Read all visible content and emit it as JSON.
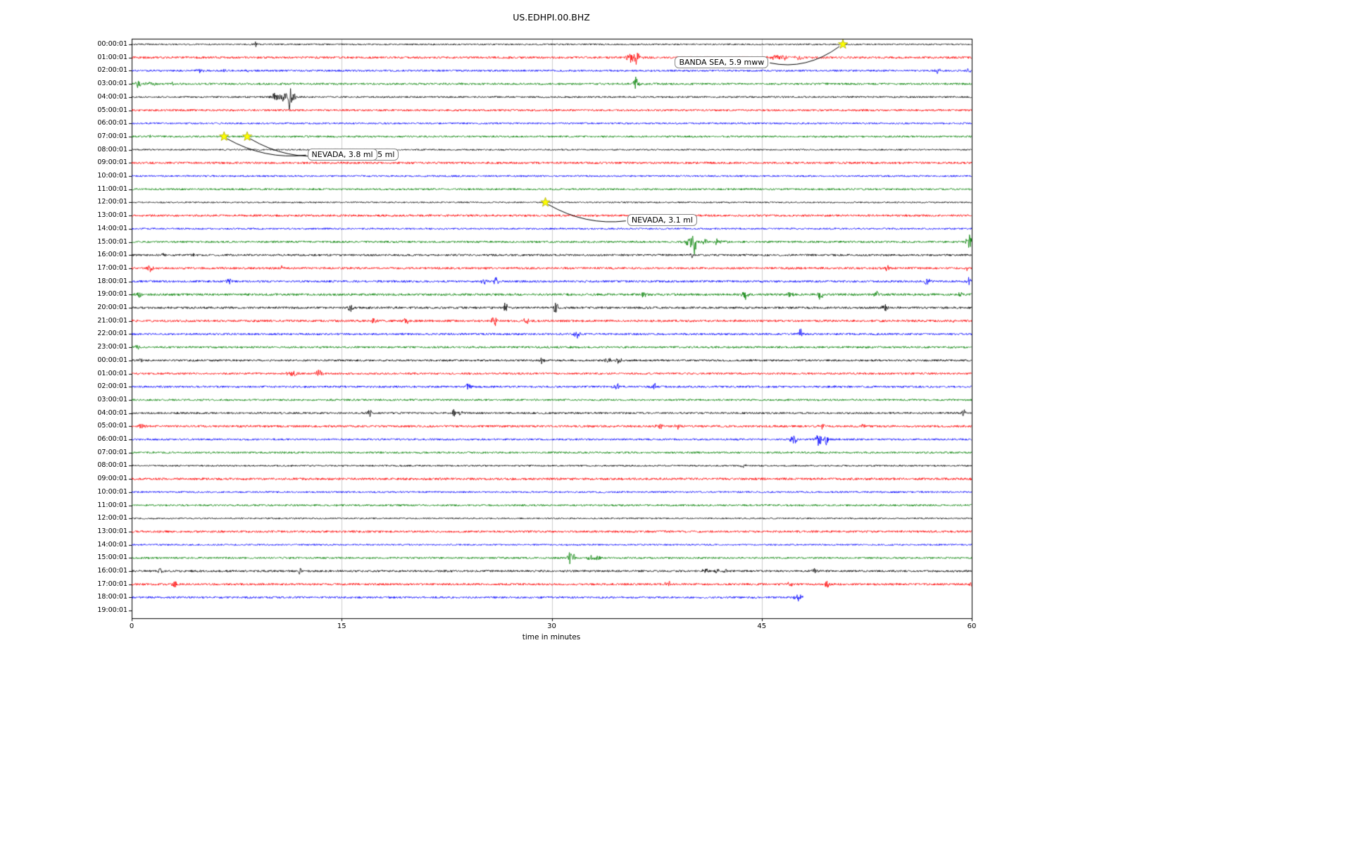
{
  "page": {
    "title": "US.EDHPI.00.BHZ"
  },
  "chart_data": {
    "type": "line",
    "subtype": "seismogram_dayplot",
    "title": "US.EDHPI.00.BHZ",
    "xlabel": "time in minutes",
    "xlim": [
      0,
      60
    ],
    "xticks": [
      0,
      15,
      30,
      45,
      60
    ],
    "grid": {
      "vertical_at": [
        15,
        30,
        45
      ],
      "color": "#cccccc",
      "on": true
    },
    "color_cycle": [
      "#000000",
      "#ff0000",
      "#0000ff",
      "#008000"
    ],
    "frame_color": "#000000",
    "star_color": "#ffff00",
    "rows": [
      {
        "label": "00:00:01",
        "color": "#000000",
        "noise": 1.1,
        "events": [
          [
            8.8,
            4,
            0.25
          ]
        ]
      },
      {
        "label": "01:00:01",
        "color": "#ff0000",
        "noise": 1.5,
        "events": [
          [
            35.7,
            7,
            0.7
          ],
          [
            36.1,
            14,
            0.2
          ],
          [
            46.3,
            4,
            1.0
          ],
          [
            47.6,
            3,
            0.6
          ]
        ]
      },
      {
        "label": "02:00:01",
        "color": "#0000ff",
        "noise": 1.3,
        "events": [
          [
            4.9,
            4,
            0.35
          ],
          [
            6.7,
            3.5,
            0.25
          ],
          [
            8.3,
            2.5,
            0.25
          ],
          [
            57.6,
            3.5,
            0.35
          ],
          [
            59.8,
            4,
            0.25
          ]
        ]
      },
      {
        "label": "03:00:01",
        "color": "#008000",
        "noise": 1.4,
        "events": [
          [
            0.4,
            6,
            0.4
          ],
          [
            1.6,
            3,
            0.9
          ],
          [
            2.9,
            4,
            0.15
          ],
          [
            36,
            8,
            0.4
          ],
          [
            36.05,
            18,
            0.12
          ]
        ]
      },
      {
        "label": "04:00:01",
        "color": "#000000",
        "noise": 1.2,
        "events": [
          [
            10.3,
            6,
            0.5
          ],
          [
            10.9,
            8,
            0.3
          ],
          [
            11.3,
            20,
            0.18
          ],
          [
            11.6,
            6,
            0.25
          ]
        ]
      },
      {
        "label": "05:00:01",
        "color": "#ff0000",
        "noise": 1.4,
        "events": []
      },
      {
        "label": "06:00:01",
        "color": "#0000ff",
        "noise": 1.2,
        "events": []
      },
      {
        "label": "07:00:01",
        "color": "#008000",
        "noise": 1.3,
        "events": [
          [
            1.2,
            2.5,
            0.3
          ]
        ]
      },
      {
        "label": "08:00:01",
        "color": "#000000",
        "noise": 1.0,
        "events": []
      },
      {
        "label": "09:00:01",
        "color": "#ff0000",
        "noise": 1.5,
        "events": []
      },
      {
        "label": "10:00:01",
        "color": "#0000ff",
        "noise": 1.2,
        "events": []
      },
      {
        "label": "11:00:01",
        "color": "#008000",
        "noise": 1.3,
        "events": []
      },
      {
        "label": "12:00:01",
        "color": "#000000",
        "noise": 1.0,
        "events": []
      },
      {
        "label": "13:00:01",
        "color": "#ff0000",
        "noise": 1.5,
        "events": []
      },
      {
        "label": "14:00:01",
        "color": "#0000ff",
        "noise": 1.2,
        "events": []
      },
      {
        "label": "15:00:01",
        "color": "#008000",
        "noise": 1.4,
        "events": [
          [
            39.9,
            8,
            0.5
          ],
          [
            40.2,
            17,
            0.15
          ],
          [
            40.9,
            5,
            0.3
          ],
          [
            41.8,
            4,
            0.4
          ],
          [
            42.4,
            3,
            0.3
          ],
          [
            59.8,
            12,
            0.3
          ]
        ]
      },
      {
        "label": "16:00:01",
        "color": "#000000",
        "noise": 1.4,
        "events": [
          [
            2.3,
            2.5,
            0.3
          ],
          [
            4.4,
            2.5,
            0.2
          ],
          [
            7,
            2.5,
            0.2
          ],
          [
            40.1,
            4,
            0.3
          ]
        ]
      },
      {
        "label": "17:00:01",
        "color": "#ff0000",
        "noise": 1.5,
        "events": [
          [
            1.3,
            5,
            0.35
          ],
          [
            10.7,
            4,
            0.2
          ],
          [
            54,
            5,
            0.3
          ],
          [
            59.6,
            3,
            0.3
          ]
        ]
      },
      {
        "label": "18:00:01",
        "color": "#0000ff",
        "noise": 1.5,
        "events": [
          [
            7,
            3.5,
            0.3
          ],
          [
            25.2,
            4,
            0.4
          ],
          [
            26,
            5,
            0.3
          ],
          [
            56.8,
            6,
            0.35
          ],
          [
            59.8,
            5,
            0.25
          ]
        ]
      },
      {
        "label": "19:00:01",
        "color": "#008000",
        "noise": 1.6,
        "events": [
          [
            0.5,
            4,
            0.3
          ],
          [
            36.6,
            5,
            0.3
          ],
          [
            43.8,
            7,
            0.3
          ],
          [
            47,
            5,
            0.35
          ],
          [
            49.2,
            8,
            0.3
          ],
          [
            53.2,
            4,
            0.3
          ],
          [
            59.2,
            4,
            0.3
          ]
        ]
      },
      {
        "label": "20:00:01",
        "color": "#000000",
        "noise": 1.5,
        "events": [
          [
            15.6,
            6,
            0.3
          ],
          [
            26.7,
            8,
            0.22
          ],
          [
            30.3,
            8,
            0.28
          ],
          [
            53.8,
            7,
            0.3
          ]
        ]
      },
      {
        "label": "21:00:01",
        "color": "#ff0000",
        "noise": 1.6,
        "events": [
          [
            17.3,
            6,
            0.28
          ],
          [
            19.6,
            4,
            0.28
          ],
          [
            25.9,
            7,
            0.3
          ],
          [
            28.2,
            8,
            0.28
          ],
          [
            58.8,
            4,
            0.3
          ]
        ]
      },
      {
        "label": "22:00:01",
        "color": "#0000ff",
        "noise": 1.4,
        "events": [
          [
            31.8,
            5,
            0.4
          ],
          [
            47.8,
            7,
            0.3
          ]
        ]
      },
      {
        "label": "23:00:01",
        "color": "#008000",
        "noise": 1.4,
        "events": [
          [
            0.4,
            3,
            0.3
          ]
        ]
      },
      {
        "label": "00:00:01",
        "color": "#000000",
        "noise": 1.4,
        "events": [
          [
            0.7,
            4,
            0.25
          ],
          [
            29.3,
            5,
            0.22
          ],
          [
            34,
            4,
            0.3
          ],
          [
            34.8,
            5,
            0.3
          ]
        ]
      },
      {
        "label": "01:00:01",
        "color": "#ff0000",
        "noise": 1.4,
        "events": [
          [
            11.5,
            3,
            0.8
          ],
          [
            13.4,
            6,
            0.35
          ]
        ]
      },
      {
        "label": "02:00:01",
        "color": "#0000ff",
        "noise": 1.4,
        "events": [
          [
            24,
            5,
            0.35
          ],
          [
            34.6,
            5,
            0.35
          ],
          [
            37.3,
            5,
            0.3
          ]
        ]
      },
      {
        "label": "03:00:01",
        "color": "#008000",
        "noise": 1.3,
        "events": []
      },
      {
        "label": "04:00:01",
        "color": "#000000",
        "noise": 1.3,
        "events": [
          [
            17,
            5,
            0.28
          ],
          [
            23,
            5,
            0.35
          ],
          [
            23.5,
            4,
            0.2
          ],
          [
            59.4,
            5,
            0.25
          ]
        ]
      },
      {
        "label": "05:00:01",
        "color": "#ff0000",
        "noise": 1.5,
        "events": [
          [
            0.7,
            5,
            0.3
          ],
          [
            37.7,
            4,
            0.4
          ],
          [
            39,
            5,
            0.3
          ],
          [
            49.3,
            4,
            0.3
          ],
          [
            52.3,
            3,
            0.3
          ]
        ]
      },
      {
        "label": "06:00:01",
        "color": "#0000ff",
        "noise": 1.3,
        "events": [
          [
            47.3,
            6,
            0.4
          ],
          [
            49,
            11,
            0.35
          ],
          [
            49.6,
            7,
            0.3
          ]
        ]
      },
      {
        "label": "07:00:01",
        "color": "#008000",
        "noise": 1.3,
        "events": []
      },
      {
        "label": "08:00:01",
        "color": "#000000",
        "noise": 1.1,
        "events": [
          [
            43.7,
            2.5,
            0.4
          ]
        ]
      },
      {
        "label": "09:00:01",
        "color": "#ff0000",
        "noise": 1.6,
        "events": []
      },
      {
        "label": "10:00:01",
        "color": "#0000ff",
        "noise": 1.2,
        "events": []
      },
      {
        "label": "11:00:01",
        "color": "#008000",
        "noise": 1.3,
        "events": []
      },
      {
        "label": "12:00:01",
        "color": "#000000",
        "noise": 1.0,
        "events": []
      },
      {
        "label": "13:00:01",
        "color": "#ff0000",
        "noise": 1.5,
        "events": []
      },
      {
        "label": "14:00:01",
        "color": "#0000ff",
        "noise": 1.1,
        "events": []
      },
      {
        "label": "15:00:01",
        "color": "#008000",
        "noise": 1.3,
        "events": [
          [
            31.3,
            9,
            0.4
          ],
          [
            31.55,
            13,
            0.15
          ],
          [
            32.8,
            5,
            0.4
          ],
          [
            33.3,
            3,
            0.25
          ]
        ]
      },
      {
        "label": "16:00:01",
        "color": "#000000",
        "noise": 1.4,
        "events": [
          [
            2,
            4,
            0.25
          ],
          [
            12,
            5,
            0.25
          ],
          [
            41,
            4,
            0.4
          ],
          [
            41.8,
            5,
            0.3
          ],
          [
            42.4,
            3,
            0.3
          ],
          [
            48.8,
            3,
            0.3
          ]
        ]
      },
      {
        "label": "17:00:01",
        "color": "#ff0000",
        "noise": 1.5,
        "events": [
          [
            3,
            5,
            0.3
          ],
          [
            38.3,
            5,
            0.3
          ],
          [
            47,
            4,
            0.3
          ],
          [
            49.7,
            5,
            0.3
          ],
          [
            59.9,
            4,
            0.2
          ]
        ]
      },
      {
        "label": "18:00:01",
        "color": "#0000ff",
        "noise": 1.4,
        "end": 48,
        "events": [
          [
            47.6,
            5,
            0.4
          ]
        ]
      },
      {
        "label": "19:00:01",
        "color": "#008000",
        "noise": 0,
        "trace": false,
        "events": []
      }
    ],
    "annotations": [
      {
        "text": "BANDA SEA, 5.9 mww",
        "box_x_min": 38.8,
        "box_row": 0.9,
        "anchor": "right",
        "sag": 11,
        "z": 5,
        "star": {
          "row": 0,
          "x_min": 50.8
        }
      },
      {
        "text": "NEVADA, 3.5 ml",
        "box_x_min": 14.1,
        "box_row": 7.9,
        "anchor": "left",
        "sag": 8,
        "z": 4,
        "star": {
          "row": 7,
          "x_min": 8.25
        }
      },
      {
        "text": "NEVADA, 3.8 ml",
        "box_x_min": 12.55,
        "box_row": 7.9,
        "anchor": "left",
        "sag": 7,
        "z": 5,
        "star": {
          "row": 7,
          "x_min": 6.6
        }
      },
      {
        "text": "NEVADA, 3.1 ml",
        "box_x_min": 35.4,
        "box_row": 12.9,
        "anchor": "left",
        "sag": 7,
        "z": 5,
        "star": {
          "row": 12,
          "x_min": 29.55
        }
      }
    ]
  }
}
